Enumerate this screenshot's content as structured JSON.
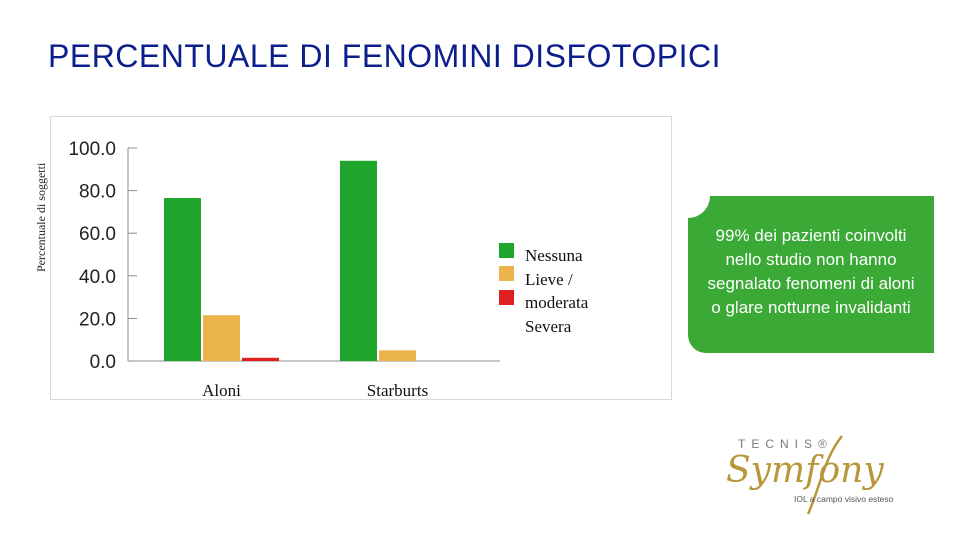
{
  "title": "PERCENTUALE DI FENOMINI DISFOTOPICI",
  "callout_text": "99% dei pazienti coinvolti nello studio non hanno segnalato fenomeni di aloni o glare notturne invalidanti",
  "logo": {
    "brand_top": "TECNIS®",
    "brand_main": "Symfony",
    "tagline": "IOL a campo visivo esteso",
    "colors": {
      "top": "#7a7a7a",
      "main": "#b8963a",
      "tagline": "#555555"
    }
  },
  "chart_data": {
    "type": "bar",
    "ylabel": "Percentuale di soggetti",
    "xlabel": "",
    "ylim": [
      0,
      100
    ],
    "yticks": [
      "100.0",
      "80.0",
      "60.0",
      "40.0",
      "20.0",
      "0.0"
    ],
    "ytick_values": [
      100,
      80,
      60,
      40,
      20,
      0
    ],
    "categories": [
      "Aloni",
      "Starburts"
    ],
    "series": [
      {
        "name": "Nessuna",
        "color": "#1fa52b",
        "values": [
          76.5,
          94
        ]
      },
      {
        "name": "Lieve / moderata",
        "color": "#eab44a",
        "values": [
          21.5,
          5
        ]
      },
      {
        "name": "Severa",
        "color": "#e02020",
        "values": [
          1.5,
          0
        ]
      }
    ],
    "legend_lines": [
      "Nessuna",
      "Lieve /",
      "moderata",
      "Severa"
    ],
    "legend_position": "right",
    "grid": false
  }
}
